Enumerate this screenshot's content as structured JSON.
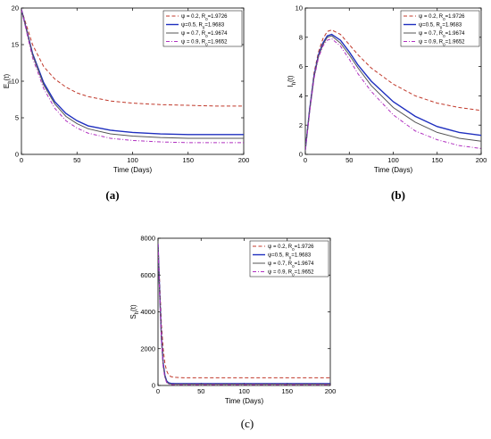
{
  "chart_data": [
    {
      "type": "line",
      "caption": "(a)",
      "ylabel": "E_h(t)",
      "xlabel": "Time (Days)",
      "xlim": [
        0,
        200
      ],
      "ylim": [
        0,
        20
      ],
      "xticks": [
        0,
        50,
        100,
        150,
        200
      ],
      "yticks": [
        0,
        5,
        10,
        15,
        20
      ],
      "legend_position": "top-right",
      "series": [
        {
          "name": "ψ = 0.2, R0=1.9726",
          "color": "#c0392b",
          "dash": "dashed",
          "x": [
            0,
            10,
            20,
            30,
            40,
            50,
            60,
            80,
            100,
            125,
            150,
            175,
            200
          ],
          "y": [
            19.8,
            15.0,
            12.0,
            10.3,
            9.2,
            8.4,
            7.9,
            7.3,
            7.0,
            6.8,
            6.7,
            6.6,
            6.6
          ]
        },
        {
          "name": "ψ=0.5, R0=1.9683",
          "color": "#1f2fbf",
          "dash": "solid",
          "x": [
            0,
            10,
            20,
            30,
            40,
            50,
            60,
            80,
            100,
            125,
            150,
            175,
            200
          ],
          "y": [
            19.8,
            13.8,
            9.8,
            7.2,
            5.6,
            4.6,
            3.9,
            3.3,
            3.0,
            2.8,
            2.7,
            2.7,
            2.7
          ]
        },
        {
          "name": "ψ = 0.7, R0=1.9674",
          "color": "#555555",
          "dash": "solid",
          "x": [
            0,
            10,
            20,
            30,
            40,
            50,
            60,
            80,
            100,
            125,
            150,
            175,
            200
          ],
          "y": [
            19.8,
            13.6,
            9.5,
            6.9,
            5.2,
            4.2,
            3.5,
            2.8,
            2.5,
            2.3,
            2.2,
            2.2,
            2.2
          ]
        },
        {
          "name": "ψ = 0.9, R0=1.9652",
          "color": "#b030c0",
          "dash": "dashdot",
          "x": [
            0,
            10,
            20,
            30,
            40,
            50,
            60,
            80,
            100,
            125,
            150,
            175,
            200
          ],
          "y": [
            19.8,
            13.2,
            9.0,
            6.3,
            4.6,
            3.6,
            2.9,
            2.2,
            1.9,
            1.7,
            1.6,
            1.6,
            1.6
          ]
        }
      ]
    },
    {
      "type": "line",
      "caption": "(b)",
      "ylabel": "I_h(t)",
      "xlabel": "Time (Days)",
      "xlim": [
        0,
        200
      ],
      "ylim": [
        0,
        10
      ],
      "xticks": [
        0,
        50,
        100,
        150,
        200
      ],
      "yticks": [
        0,
        2,
        4,
        6,
        8,
        10
      ],
      "legend_position": "top-right",
      "series": [
        {
          "name": "ψ = 0.2, R0=1.9726",
          "color": "#c0392b",
          "dash": "dashed",
          "x": [
            0,
            5,
            10,
            15,
            20,
            25,
            30,
            40,
            50,
            60,
            75,
            100,
            125,
            150,
            175,
            200
          ],
          "y": [
            0.3,
            3.2,
            5.6,
            7.0,
            7.9,
            8.4,
            8.5,
            8.2,
            7.5,
            6.8,
            5.9,
            4.8,
            4.0,
            3.5,
            3.2,
            3.0
          ]
        },
        {
          "name": "ψ=0.5, R0=1.9683",
          "color": "#1f2fbf",
          "dash": "solid",
          "x": [
            0,
            5,
            10,
            15,
            20,
            25,
            30,
            40,
            50,
            60,
            75,
            100,
            125,
            150,
            175,
            200
          ],
          "y": [
            0.3,
            3.1,
            5.4,
            6.8,
            7.6,
            8.1,
            8.2,
            7.8,
            7.0,
            6.1,
            5.0,
            3.6,
            2.6,
            1.9,
            1.5,
            1.3
          ]
        },
        {
          "name": "ψ = 0.7, R0=1.9674",
          "color": "#555555",
          "dash": "solid",
          "x": [
            0,
            5,
            10,
            15,
            20,
            25,
            30,
            40,
            50,
            60,
            75,
            100,
            125,
            150,
            175,
            200
          ],
          "y": [
            0.3,
            3.0,
            5.3,
            6.7,
            7.5,
            8.0,
            8.1,
            7.6,
            6.8,
            5.9,
            4.7,
            3.2,
            2.2,
            1.5,
            1.1,
            0.9
          ]
        },
        {
          "name": "ψ = 0.9, R0=1.9652",
          "color": "#b030c0",
          "dash": "dashdot",
          "x": [
            0,
            5,
            10,
            15,
            20,
            25,
            30,
            40,
            50,
            60,
            75,
            100,
            125,
            150,
            175,
            200
          ],
          "y": [
            0.3,
            2.9,
            5.2,
            6.6,
            7.4,
            7.8,
            7.9,
            7.4,
            6.5,
            5.5,
            4.3,
            2.7,
            1.6,
            1.0,
            0.6,
            0.4
          ]
        }
      ]
    },
    {
      "type": "line",
      "caption": "(c)",
      "ylabel": "S_h(t)",
      "xlabel": "Time (Days)",
      "xlim": [
        0,
        200
      ],
      "ylim": [
        0,
        8000
      ],
      "xticks": [
        0,
        50,
        100,
        150,
        200
      ],
      "yticks": [
        0,
        2000,
        4000,
        6000,
        8000
      ],
      "legend_position": "top-right",
      "series": [
        {
          "name": "ψ = 0.2, R0=1.9726",
          "color": "#c0392b",
          "dash": "dashed",
          "x": [
            0,
            2,
            4,
            6,
            8,
            10,
            12,
            15,
            20,
            30,
            50,
            100,
            150,
            200
          ],
          "y": [
            7700,
            5500,
            3300,
            2000,
            1200,
            800,
            600,
            480,
            440,
            420,
            420,
            420,
            420,
            420
          ]
        },
        {
          "name": "ψ=0.5, R0=1.9683",
          "color": "#1f2fbf",
          "dash": "solid",
          "x": [
            0,
            2,
            4,
            6,
            8,
            10,
            12,
            15,
            20,
            30,
            50,
            100,
            150,
            200
          ],
          "y": [
            7700,
            5000,
            2600,
            1200,
            550,
            250,
            150,
            110,
            100,
            100,
            100,
            100,
            100,
            100
          ]
        },
        {
          "name": "ψ = 0.7, R0=1.9674",
          "color": "#555555",
          "dash": "solid",
          "x": [
            0,
            2,
            4,
            6,
            8,
            10,
            12,
            15,
            20,
            30,
            50,
            100,
            150,
            200
          ],
          "y": [
            7700,
            4900,
            2500,
            1100,
            480,
            200,
            110,
            80,
            70,
            70,
            70,
            70,
            70,
            70
          ]
        },
        {
          "name": "ψ = 0.9, R0=1.9652",
          "color": "#b030c0",
          "dash": "dashdot",
          "x": [
            0,
            2,
            4,
            6,
            8,
            10,
            12,
            15,
            20,
            30,
            50,
            100,
            150,
            200
          ],
          "y": [
            7700,
            4800,
            2400,
            1000,
            420,
            160,
            80,
            50,
            40,
            40,
            40,
            40,
            40,
            40
          ]
        }
      ]
    }
  ]
}
